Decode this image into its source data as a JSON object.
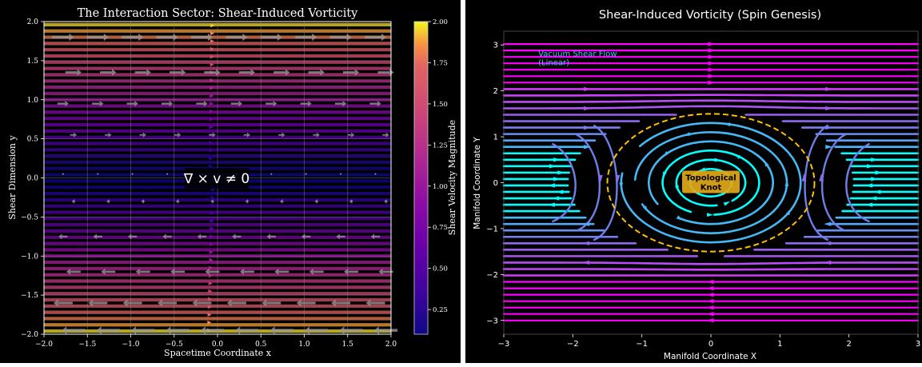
{
  "chart_data": [
    {
      "type": "streamplot",
      "title": "The Interaction Sector: Shear-Induced Vorticity",
      "xlabel": "Spacetime Coordinate x",
      "ylabel": "Shear Dimension y",
      "xlim": [
        -2.0,
        2.0
      ],
      "ylim": [
        -2.0,
        2.0
      ],
      "x_ticks": [
        "−2.0",
        "−1.5",
        "−1.0",
        "−0.5",
        "0.0",
        "0.5",
        "1.0",
        "1.5",
        "2.0"
      ],
      "y_ticks": [
        "−2.0",
        "−1.5",
        "−1.0",
        "−0.5",
        "0.0",
        "0.5",
        "1.0",
        "1.5",
        "2.0"
      ],
      "x_tick_values": [
        -2.0,
        -1.5,
        -1.0,
        -0.5,
        0.0,
        0.5,
        1.0,
        1.5,
        2.0
      ],
      "y_tick_values": [
        -2.0,
        -1.5,
        -1.0,
        -0.5,
        0.0,
        0.5,
        1.0,
        1.5,
        2.0
      ],
      "grid": true,
      "field": "u = y, v = 0 (linear shear flow)",
      "annotation": "∇ × v ≠ 0",
      "annotation_xy": [
        0.0,
        0.0
      ],
      "colorbar": {
        "label": "Shear Velocity Magnitude",
        "range": [
          0.1,
          2.0
        ],
        "ticks": [
          "0.25",
          "0.50",
          "0.75",
          "1.00",
          "1.25",
          "1.50",
          "1.75",
          "2.00"
        ],
        "tick_values": [
          0.25,
          0.5,
          0.75,
          1.0,
          1.25,
          1.5,
          1.75,
          2.0
        ],
        "colormap": "plasma"
      },
      "colors": {
        "background": "#000000",
        "grid": "#8a8a8a",
        "arrows": "#9a9a9a"
      }
    },
    {
      "type": "streamplot",
      "title": "Shear-Induced Vorticity (Spin Genesis)",
      "xlabel": "Manifold Coordinate X",
      "ylabel": "Manifold Coordinate Y",
      "xlim": [
        -3,
        3
      ],
      "ylim": [
        -3.3,
        3.3
      ],
      "x_ticks": [
        "−3",
        "−2",
        "−1",
        "0",
        "1",
        "2",
        "3"
      ],
      "y_ticks": [
        "−3",
        "−2",
        "−1",
        "0",
        "1",
        "2",
        "3"
      ],
      "x_tick_values": [
        -3,
        -2,
        -1,
        0,
        1,
        2,
        3
      ],
      "y_tick_values": [
        -3,
        -2,
        -1,
        0,
        1,
        2,
        3
      ],
      "grid": false,
      "legend_text": [
        "Vacuum Shear Flow",
        "(Linear)"
      ],
      "legend_xy": [
        -2.5,
        2.75
      ],
      "knot_label": [
        "Topological",
        "Knot"
      ],
      "knot_center": [
        0,
        0
      ],
      "knot_radius": 1.5,
      "colors": {
        "background": "#000000",
        "outer_flow": "#ff00ff",
        "mid_flow": "#8f68f0",
        "inner_flow": "#00ffff",
        "knot_boundary": "#ffc000",
        "knot_label_bg": "#e2a91a"
      }
    }
  ]
}
